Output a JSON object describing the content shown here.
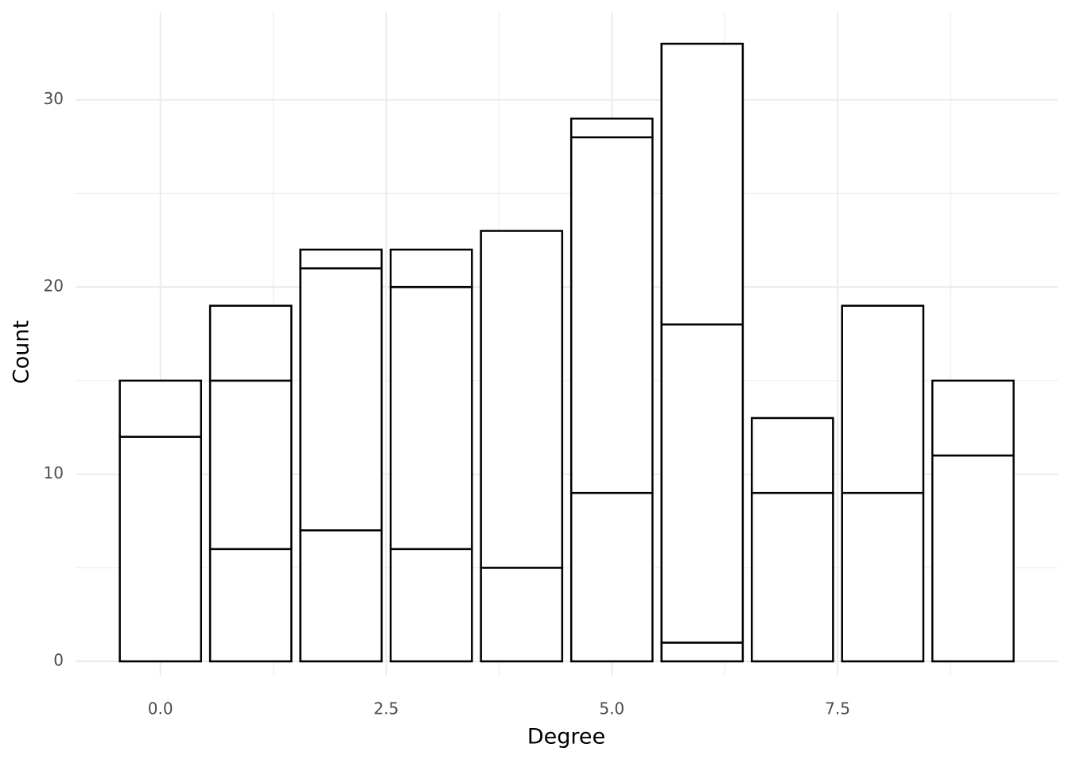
{
  "chart_data": {
    "type": "stacked_bar",
    "x_label": "Degree",
    "y_label": "Count",
    "x": [
      0,
      1,
      2,
      3,
      4,
      5,
      6,
      7,
      8,
      9
    ],
    "series": [
      {
        "color": "#ffffff",
        "values": [
          12,
          6,
          7,
          6,
          5,
          9,
          1,
          9,
          9,
          11
        ]
      },
      {
        "color": "#ffffff",
        "values": [
          null,
          9,
          14,
          14,
          null,
          19,
          17,
          null,
          null,
          null
        ]
      },
      {
        "color": "#ffffff",
        "values": [
          3,
          4,
          1,
          2,
          18,
          1,
          15,
          4,
          10,
          4
        ]
      }
    ],
    "bar_width": 0.9,
    "outline_color": "#000000",
    "xlim": [
      -0.94,
      9.94
    ],
    "ylim": [
      -0.76,
      34.7
    ],
    "xticks": [
      {
        "value": 0,
        "label": "0.0"
      },
      {
        "value": 2.5,
        "label": "2.5"
      },
      {
        "value": 5,
        "label": "5.0"
      },
      {
        "value": 7.5,
        "label": "7.5"
      }
    ],
    "yticks": [
      0,
      10,
      20,
      30
    ],
    "x_minor_ticks": [
      1.25,
      3.75,
      6.25,
      8.75
    ],
    "y_minor_ticks": [
      5,
      15,
      25
    ],
    "grid": true
  }
}
